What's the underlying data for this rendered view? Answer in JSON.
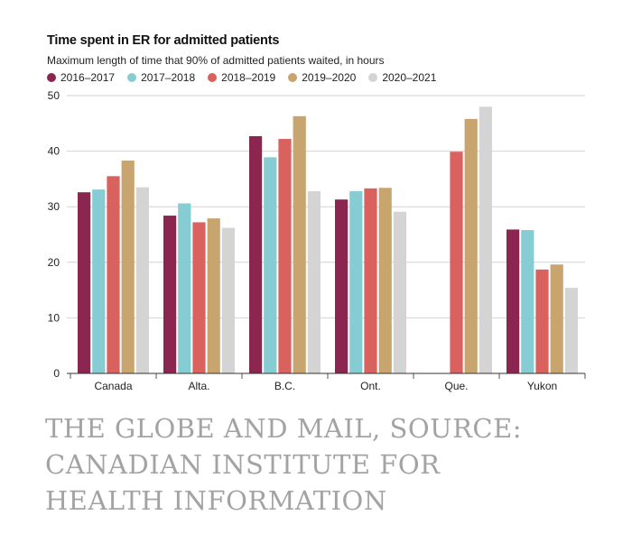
{
  "header": {
    "title": "Time spent in ER for admitted patients",
    "subtitle": "Maximum length of time that 90% of admitted patients waited, in hours"
  },
  "colors": {
    "2016–2017": "#8a2650",
    "2017–2018": "#86ccd3",
    "2018–2019": "#d9625f",
    "2019–2020": "#c8a46e",
    "2020–2021": "#d4d4d4"
  },
  "chart_data": {
    "type": "bar",
    "title": "Time spent in ER for admitted patients",
    "subtitle": "Maximum length of time that 90% of admitted patients waited, in hours",
    "categories": [
      "Canada",
      "Alta.",
      "B.C.",
      "Ont.",
      "Que.",
      "Yukon"
    ],
    "series": [
      {
        "name": "2016–2017",
        "values": [
          32.6,
          28.4,
          42.7,
          31.3,
          null,
          25.9
        ]
      },
      {
        "name": "2017–2018",
        "values": [
          33.1,
          30.6,
          38.9,
          32.8,
          null,
          25.8
        ]
      },
      {
        "name": "2018–2019",
        "values": [
          35.5,
          27.2,
          42.2,
          33.3,
          39.9,
          18.7
        ]
      },
      {
        "name": "2019–2020",
        "values": [
          38.3,
          27.9,
          46.3,
          33.4,
          45.8,
          19.6
        ]
      },
      {
        "name": "2020–2021",
        "values": [
          33.5,
          26.2,
          32.8,
          29.1,
          48.0,
          15.4
        ]
      }
    ],
    "yticks": [
      0,
      10,
      20,
      30,
      40,
      50
    ],
    "ylim": [
      0,
      50
    ],
    "xlabel": "",
    "ylabel": "",
    "grid": true,
    "legend": "top"
  },
  "source": {
    "lines": [
      "THE GLOBE AND MAIL, SOURCE:",
      "CANADIAN INSTITUTE FOR",
      "HEALTH INFORMATION"
    ]
  }
}
